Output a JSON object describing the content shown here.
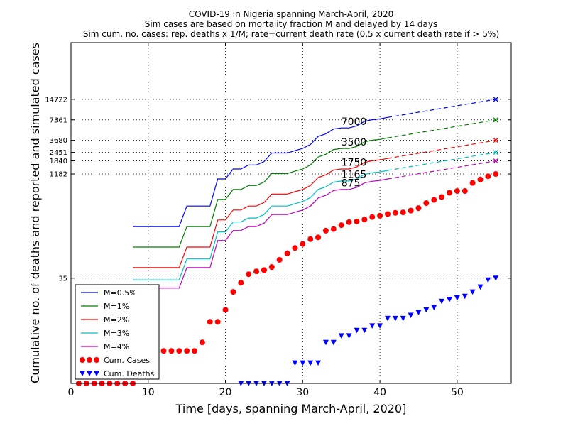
{
  "chart_data": {
    "type": "line",
    "title_lines": [
      "COVID-19 in Nigeria spanning March-April, 2020",
      "Sim cases are based on mortality fraction M and delayed by 14 days",
      "Sim cum. no. cases: rep. deaths x 1/M; rate=current death rate (0.5 x current death rate if > 5%)"
    ],
    "xlabel": "Time [days, spanning March-April, 2020]",
    "ylabel": "Cumulative no. of deaths and reported and simulated cases",
    "xlim": [
      0,
      57
    ],
    "ylim": [
      1,
      100000
    ],
    "yscale": "log",
    "xticks": [
      0,
      10,
      20,
      30,
      40,
      50
    ],
    "yticks": [
      35,
      1182,
      1840,
      2451,
      3680,
      7361,
      14722
    ],
    "grid": "dotted",
    "legend_position": "bottom-left",
    "series": [
      {
        "name": "M=0.5%",
        "color": "#0000ff",
        "style": "line",
        "proj_end": 14722,
        "x": [
          8,
          10,
          11,
          12,
          13,
          14,
          15,
          16,
          17,
          18,
          19,
          20,
          21,
          22,
          23,
          24,
          25,
          26,
          27,
          28,
          29,
          30,
          31,
          32,
          33,
          34,
          35,
          36,
          37,
          38,
          39,
          40,
          41
        ],
        "y": [
          200,
          200,
          200,
          200,
          200,
          200,
          400,
          400,
          400,
          400,
          1000,
          1000,
          1400,
          1400,
          1600,
          1600,
          1800,
          2400,
          2400,
          2400,
          2600,
          2800,
          3200,
          4200,
          4600,
          5400,
          5600,
          5600,
          6000,
          7000,
          7400,
          7600,
          8000
        ]
      },
      {
        "name": "M=1%",
        "color": "#008000",
        "style": "line",
        "proj_end": 7361,
        "x": [
          8,
          10,
          11,
          12,
          13,
          14,
          15,
          16,
          17,
          18,
          19,
          20,
          21,
          22,
          23,
          24,
          25,
          26,
          27,
          28,
          29,
          30,
          31,
          32,
          33,
          34,
          35,
          36,
          37,
          38,
          39,
          40,
          41
        ],
        "y": [
          100,
          100,
          100,
          100,
          100,
          100,
          200,
          200,
          200,
          200,
          500,
          500,
          700,
          700,
          800,
          800,
          900,
          1200,
          1200,
          1200,
          1300,
          1400,
          1600,
          2100,
          2300,
          2700,
          2800,
          2800,
          3000,
          3500,
          3700,
          3800,
          4000
        ]
      },
      {
        "name": "M=2%",
        "color": "#ff0000",
        "style": "line",
        "proj_end": 3680,
        "x": [
          8,
          10,
          11,
          12,
          13,
          14,
          15,
          16,
          17,
          18,
          19,
          20,
          21,
          22,
          23,
          24,
          25,
          26,
          27,
          28,
          29,
          30,
          31,
          32,
          33,
          34,
          35,
          36,
          37,
          38,
          39,
          40,
          41
        ],
        "y": [
          50,
          50,
          50,
          50,
          50,
          50,
          100,
          100,
          100,
          100,
          250,
          250,
          350,
          350,
          400,
          400,
          450,
          600,
          600,
          600,
          650,
          700,
          800,
          1050,
          1150,
          1350,
          1400,
          1400,
          1500,
          1750,
          1850,
          1900,
          2000
        ]
      },
      {
        "name": "M=3%",
        "color": "#00bfbf",
        "style": "line",
        "proj_end": 2451,
        "x": [
          8,
          10,
          11,
          12,
          13,
          14,
          15,
          16,
          17,
          18,
          19,
          20,
          21,
          22,
          23,
          24,
          25,
          26,
          27,
          28,
          29,
          30,
          31,
          32,
          33,
          34,
          35,
          36,
          37,
          38,
          39,
          40,
          41
        ],
        "y": [
          33,
          33,
          33,
          33,
          33,
          33,
          67,
          67,
          67,
          67,
          167,
          167,
          233,
          233,
          267,
          267,
          300,
          400,
          400,
          400,
          433,
          467,
          533,
          700,
          767,
          900,
          933,
          933,
          1000,
          1165,
          1233,
          1267,
          1333
        ]
      },
      {
        "name": "M=4%",
        "color": "#bf00bf",
        "style": "line",
        "proj_end": 1840,
        "x": [
          8,
          10,
          11,
          12,
          13,
          14,
          15,
          16,
          17,
          18,
          19,
          20,
          21,
          22,
          23,
          24,
          25,
          26,
          27,
          28,
          29,
          30,
          31,
          32,
          33,
          34,
          35,
          36,
          37,
          38,
          39,
          40,
          41
        ],
        "y": [
          25,
          25,
          25,
          25,
          25,
          25,
          50,
          50,
          50,
          50,
          125,
          125,
          175,
          175,
          200,
          200,
          225,
          300,
          300,
          300,
          325,
          350,
          400,
          525,
          575,
          675,
          700,
          700,
          750,
          875,
          925,
          950,
          1000
        ]
      },
      {
        "name": "Cum. Cases",
        "color": "#ff0000",
        "style": "dots",
        "x": [
          1,
          2,
          3,
          4,
          5,
          6,
          7,
          8,
          9,
          10,
          11,
          12,
          13,
          14,
          15,
          16,
          17,
          18,
          19,
          20,
          21,
          22,
          23,
          24,
          25,
          26,
          27,
          28,
          29,
          30,
          31,
          32,
          33,
          34,
          35,
          36,
          37,
          38,
          39,
          40,
          41,
          42,
          43,
          44,
          45,
          46,
          47,
          48,
          49,
          50,
          51,
          52,
          53,
          54,
          55
        ],
        "y": [
          1,
          1,
          1,
          1,
          1,
          1,
          1,
          1,
          2,
          2,
          2,
          3,
          3,
          3,
          3,
          3,
          4,
          8,
          8,
          12,
          22,
          30,
          40,
          44,
          46,
          51,
          65,
          81,
          97,
          111,
          131,
          139,
          174,
          184,
          210,
          232,
          238,
          254,
          276,
          288,
          305,
          318,
          323,
          343,
          373,
          442,
          493,
          542,
          627,
          665,
          665,
          873,
          981,
          1095,
          1182
        ]
      },
      {
        "name": "Cum. Deaths",
        "color": "#0000ff",
        "style": "triangles",
        "x": [
          22,
          23,
          24,
          25,
          26,
          27,
          28,
          29,
          30,
          31,
          32,
          33,
          34,
          35,
          36,
          37,
          38,
          39,
          40,
          41,
          42,
          43,
          44,
          45,
          46,
          47,
          48,
          49,
          50,
          51,
          52,
          53,
          54,
          55
        ],
        "y": [
          1,
          1,
          1,
          1,
          1,
          1,
          1,
          2,
          2,
          2,
          2,
          4,
          4,
          5,
          5,
          6,
          6,
          7,
          7,
          9,
          9,
          9,
          10,
          11,
          12,
          13,
          16,
          17,
          18,
          19,
          22,
          26,
          33,
          35
        ]
      }
    ],
    "annotations": [
      {
        "text": "7000",
        "x": 35,
        "y": 7000
      },
      {
        "text": "3500",
        "x": 35,
        "y": 3500
      },
      {
        "text": "1750",
        "x": 35,
        "y": 1750
      },
      {
        "text": "1165",
        "x": 35,
        "y": 1165
      },
      {
        "text": "875",
        "x": 35,
        "y": 875
      }
    ],
    "projection": {
      "x_start": 41,
      "x_end": 55
    }
  }
}
